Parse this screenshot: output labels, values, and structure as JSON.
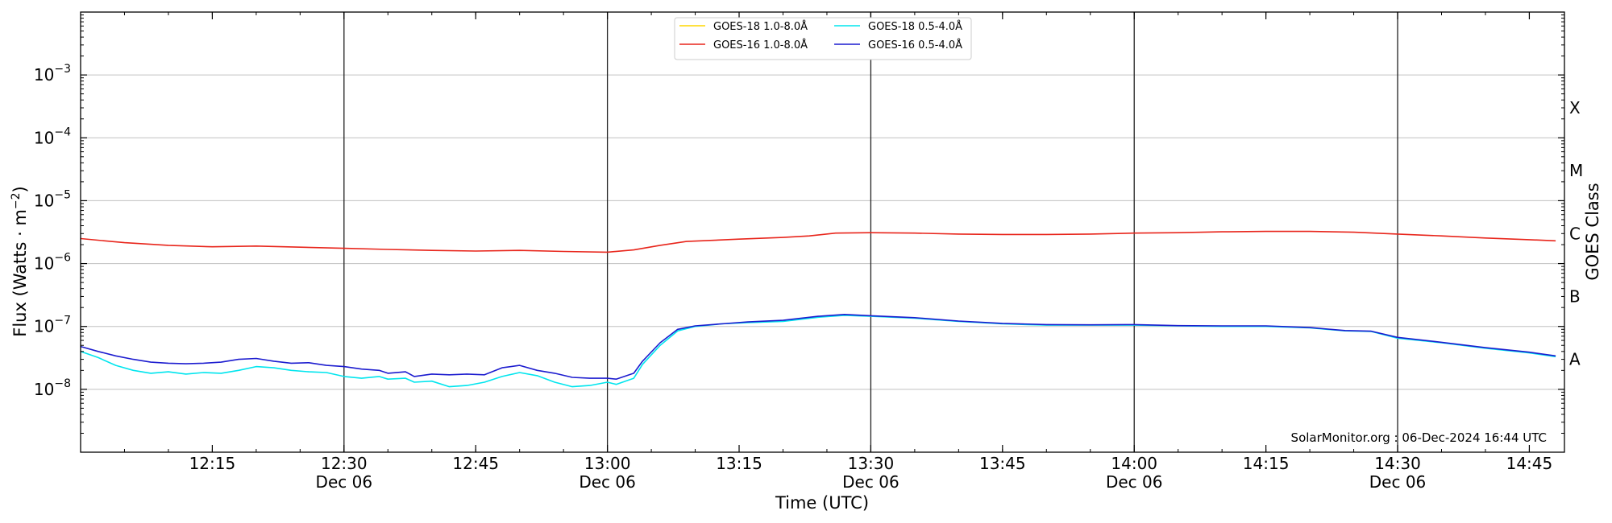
{
  "chart_data": {
    "type": "line",
    "title": "",
    "xlabel": "Time (UTC)",
    "ylabel": "Flux (Watts · m",
    "ylabel_exponent": "−2",
    "ylabel_close": ")",
    "y2label": "GOES Class",
    "yscale": "log",
    "xlim": [
      "12:00:00",
      "14:49:00"
    ],
    "ylim": [
      1e-09,
      0.01
    ],
    "grid": "horizontal",
    "legend_position": "top-center",
    "credit": "SolarMonitor.org : 06-Dec-2024 16:44 UTC",
    "xticks": [
      {
        "t": "12:15",
        "label": "12:15",
        "date": ""
      },
      {
        "t": "12:30",
        "label": "12:30",
        "date": "Dec 06"
      },
      {
        "t": "12:45",
        "label": "12:45",
        "date": ""
      },
      {
        "t": "13:00",
        "label": "13:00",
        "date": "Dec 06"
      },
      {
        "t": "13:15",
        "label": "13:15",
        "date": ""
      },
      {
        "t": "13:30",
        "label": "13:30",
        "date": "Dec 06"
      },
      {
        "t": "13:45",
        "label": "13:45",
        "date": ""
      },
      {
        "t": "14:00",
        "label": "14:00",
        "date": "Dec 06"
      },
      {
        "t": "14:15",
        "label": "14:15",
        "date": ""
      },
      {
        "t": "14:30",
        "label": "14:30",
        "date": "Dec 06"
      },
      {
        "t": "14:45",
        "label": "14:45",
        "date": ""
      }
    ],
    "vlines": [
      "12:30",
      "13:00",
      "13:30",
      "14:00",
      "14:30"
    ],
    "yticks": [
      {
        "value": 0.001,
        "base": "10",
        "exp": "−3"
      },
      {
        "value": 0.0001,
        "base": "10",
        "exp": "−4"
      },
      {
        "value": 1e-05,
        "base": "10",
        "exp": "−5"
      },
      {
        "value": 1e-06,
        "base": "10",
        "exp": "−6"
      },
      {
        "value": 1e-07,
        "base": "10",
        "exp": "−7"
      },
      {
        "value": 1e-08,
        "base": "10",
        "exp": "−8"
      }
    ],
    "goes_classes": [
      {
        "label": "X",
        "value": 0.0003
      },
      {
        "label": "M",
        "value": 3e-05
      },
      {
        "label": "C",
        "value": 3e-06
      },
      {
        "label": "B",
        "value": 3e-07
      },
      {
        "label": "A",
        "value": 3e-08
      }
    ],
    "series": [
      {
        "name": "GOES-18 1.0-8.0Å",
        "color": "#ffd700",
        "points": []
      },
      {
        "name": "GOES-16 1.0-8.0Å",
        "color": "#e8251b",
        "points": [
          [
            "12:00",
            2.5e-06
          ],
          [
            "12:05",
            2.15e-06
          ],
          [
            "12:10",
            1.95e-06
          ],
          [
            "12:15",
            1.85e-06
          ],
          [
            "12:20",
            1.9e-06
          ],
          [
            "12:25",
            1.82e-06
          ],
          [
            "12:30",
            1.75e-06
          ],
          [
            "12:35",
            1.68e-06
          ],
          [
            "12:40",
            1.62e-06
          ],
          [
            "12:45",
            1.58e-06
          ],
          [
            "12:50",
            1.62e-06
          ],
          [
            "12:55",
            1.56e-06
          ],
          [
            "13:00",
            1.52e-06
          ],
          [
            "13:03",
            1.65e-06
          ],
          [
            "13:06",
            1.95e-06
          ],
          [
            "13:09",
            2.25e-06
          ],
          [
            "13:15",
            2.45e-06
          ],
          [
            "13:20",
            2.6e-06
          ],
          [
            "13:23",
            2.75e-06
          ],
          [
            "13:26",
            3.05e-06
          ],
          [
            "13:30",
            3.1e-06
          ],
          [
            "13:35",
            3.05e-06
          ],
          [
            "13:40",
            2.95e-06
          ],
          [
            "13:45",
            2.9e-06
          ],
          [
            "13:50",
            2.9e-06
          ],
          [
            "13:55",
            2.95e-06
          ],
          [
            "14:00",
            3.05e-06
          ],
          [
            "14:05",
            3.1e-06
          ],
          [
            "14:10",
            3.2e-06
          ],
          [
            "14:15",
            3.25e-06
          ],
          [
            "14:20",
            3.25e-06
          ],
          [
            "14:25",
            3.15e-06
          ],
          [
            "14:30",
            2.95e-06
          ],
          [
            "14:35",
            2.75e-06
          ],
          [
            "14:40",
            2.55e-06
          ],
          [
            "14:45",
            2.4e-06
          ],
          [
            "14:48",
            2.3e-06
          ]
        ]
      },
      {
        "name": "GOES-18 0.5-4.0Å",
        "color": "#00e5ee",
        "points": [
          [
            "12:00",
            4e-08
          ],
          [
            "12:02",
            3.2e-08
          ],
          [
            "12:04",
            2.4e-08
          ],
          [
            "12:06",
            2e-08
          ],
          [
            "12:08",
            1.8e-08
          ],
          [
            "12:10",
            1.9e-08
          ],
          [
            "12:12",
            1.75e-08
          ],
          [
            "12:14",
            1.85e-08
          ],
          [
            "12:16",
            1.8e-08
          ],
          [
            "12:18",
            2e-08
          ],
          [
            "12:20",
            2.3e-08
          ],
          [
            "12:22",
            2.2e-08
          ],
          [
            "12:24",
            2e-08
          ],
          [
            "12:26",
            1.9e-08
          ],
          [
            "12:28",
            1.85e-08
          ],
          [
            "12:30",
            1.6e-08
          ],
          [
            "12:32",
            1.5e-08
          ],
          [
            "12:34",
            1.6e-08
          ],
          [
            "12:35",
            1.45e-08
          ],
          [
            "12:37",
            1.5e-08
          ],
          [
            "12:38",
            1.3e-08
          ],
          [
            "12:40",
            1.35e-08
          ],
          [
            "12:42",
            1.1e-08
          ],
          [
            "12:44",
            1.15e-08
          ],
          [
            "12:46",
            1.3e-08
          ],
          [
            "12:48",
            1.6e-08
          ],
          [
            "12:50",
            1.85e-08
          ],
          [
            "12:52",
            1.65e-08
          ],
          [
            "12:54",
            1.3e-08
          ],
          [
            "12:56",
            1.1e-08
          ],
          [
            "12:58",
            1.15e-08
          ],
          [
            "13:00",
            1.3e-08
          ],
          [
            "13:01",
            1.2e-08
          ],
          [
            "13:03",
            1.5e-08
          ],
          [
            "13:04",
            2.5e-08
          ],
          [
            "13:06",
            5e-08
          ],
          [
            "13:08",
            8.5e-08
          ],
          [
            "13:10",
            1e-07
          ],
          [
            "13:13",
            1.1e-07
          ],
          [
            "13:16",
            1.15e-07
          ],
          [
            "13:20",
            1.2e-07
          ],
          [
            "13:24",
            1.4e-07
          ],
          [
            "13:27",
            1.5e-07
          ],
          [
            "13:30",
            1.45e-07
          ],
          [
            "13:35",
            1.35e-07
          ],
          [
            "13:40",
            1.2e-07
          ],
          [
            "13:45",
            1.1e-07
          ],
          [
            "13:50",
            1.05e-07
          ],
          [
            "13:55",
            1.05e-07
          ],
          [
            "14:00",
            1.05e-07
          ],
          [
            "14:05",
            1.02e-07
          ],
          [
            "14:10",
            1e-07
          ],
          [
            "14:15",
            1e-07
          ],
          [
            "14:20",
            9.5e-08
          ],
          [
            "14:24",
            8.5e-08
          ],
          [
            "14:27",
            8.3e-08
          ],
          [
            "14:30",
            6.5e-08
          ],
          [
            "14:35",
            5.5e-08
          ],
          [
            "14:40",
            4.5e-08
          ],
          [
            "14:45",
            3.8e-08
          ],
          [
            "14:48",
            3.3e-08
          ]
        ]
      },
      {
        "name": "GOES-16 0.5-4.0Å",
        "color": "#1c1ccf",
        "points": [
          [
            "12:00",
            4.8e-08
          ],
          [
            "12:02",
            4e-08
          ],
          [
            "12:04",
            3.4e-08
          ],
          [
            "12:06",
            3e-08
          ],
          [
            "12:08",
            2.7e-08
          ],
          [
            "12:10",
            2.6e-08
          ],
          [
            "12:12",
            2.55e-08
          ],
          [
            "12:14",
            2.6e-08
          ],
          [
            "12:16",
            2.7e-08
          ],
          [
            "12:18",
            3e-08
          ],
          [
            "12:20",
            3.1e-08
          ],
          [
            "12:22",
            2.8e-08
          ],
          [
            "12:24",
            2.6e-08
          ],
          [
            "12:26",
            2.65e-08
          ],
          [
            "12:28",
            2.4e-08
          ],
          [
            "12:30",
            2.3e-08
          ],
          [
            "12:32",
            2.1e-08
          ],
          [
            "12:34",
            2e-08
          ],
          [
            "12:35",
            1.8e-08
          ],
          [
            "12:37",
            1.9e-08
          ],
          [
            "12:38",
            1.6e-08
          ],
          [
            "12:40",
            1.75e-08
          ],
          [
            "12:42",
            1.7e-08
          ],
          [
            "12:44",
            1.75e-08
          ],
          [
            "12:46",
            1.7e-08
          ],
          [
            "12:48",
            2.2e-08
          ],
          [
            "12:50",
            2.4e-08
          ],
          [
            "12:52",
            2e-08
          ],
          [
            "12:54",
            1.8e-08
          ],
          [
            "12:56",
            1.55e-08
          ],
          [
            "12:58",
            1.5e-08
          ],
          [
            "13:00",
            1.5e-08
          ],
          [
            "13:01",
            1.45e-08
          ],
          [
            "13:03",
            1.8e-08
          ],
          [
            "13:04",
            2.8e-08
          ],
          [
            "13:06",
            5.5e-08
          ],
          [
            "13:08",
            9e-08
          ],
          [
            "13:10",
            1.02e-07
          ],
          [
            "13:13",
            1.1e-07
          ],
          [
            "13:16",
            1.18e-07
          ],
          [
            "13:20",
            1.25e-07
          ],
          [
            "13:24",
            1.45e-07
          ],
          [
            "13:27",
            1.55e-07
          ],
          [
            "13:30",
            1.48e-07
          ],
          [
            "13:35",
            1.38e-07
          ],
          [
            "13:40",
            1.22e-07
          ],
          [
            "13:45",
            1.12e-07
          ],
          [
            "13:50",
            1.07e-07
          ],
          [
            "13:55",
            1.06e-07
          ],
          [
            "14:00",
            1.07e-07
          ],
          [
            "14:05",
            1.03e-07
          ],
          [
            "14:10",
            1.02e-07
          ],
          [
            "14:15",
            1.02e-07
          ],
          [
            "14:20",
            9.6e-08
          ],
          [
            "14:24",
            8.6e-08
          ],
          [
            "14:27",
            8.4e-08
          ],
          [
            "14:30",
            6.7e-08
          ],
          [
            "14:35",
            5.6e-08
          ],
          [
            "14:40",
            4.6e-08
          ],
          [
            "14:45",
            3.9e-08
          ],
          [
            "14:48",
            3.4e-08
          ]
        ]
      }
    ]
  }
}
